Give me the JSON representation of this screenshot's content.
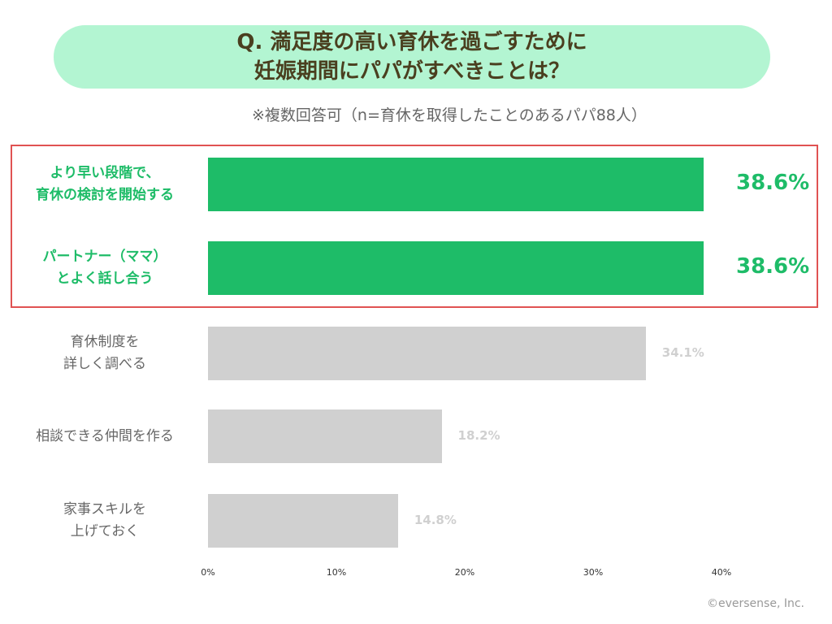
{
  "chart_data": {
    "type": "bar",
    "orientation": "horizontal",
    "title": "Q. 満足度の高い育休を過ごすために\n妊娠期間にパパがすべきことは？",
    "subtitle": "※複数回答可（n=育休を取得したことのあるパパ88人）",
    "categories": [
      "より早い段階で、\n育休の検討を開始する",
      "パートナー（ママ）\nとよく話し合う",
      "育休制度を\n詳しく調べる",
      "相談できる仲間を作る",
      "家事スキルを\n上げておく"
    ],
    "values": [
      38.6,
      38.6,
      34.1,
      18.2,
      14.8
    ],
    "value_labels": [
      "38.6%",
      "38.6%",
      "34.1%",
      "18.2%",
      "14.8%"
    ],
    "highlighted": [
      true,
      true,
      false,
      false,
      false
    ],
    "xlim": [
      0,
      40
    ],
    "x_ticks": [
      "0%",
      "10%",
      "20%",
      "30%",
      "40%"
    ],
    "grid": false,
    "colors": {
      "highlight": "#1ebc68",
      "normal": "#d0d0d0",
      "title_bg": "#b3f5d2",
      "title_text": "#4a3f1f",
      "box": "#e05252"
    }
  },
  "title_lines": [
    "Q. 満足度の高い育休を過ごすために",
    "妊娠期間にパパがすべきことは？"
  ],
  "note": "※複数回答可（n=育休を取得したことのあるパパ88人）",
  "copyright": "©eversense, Inc."
}
